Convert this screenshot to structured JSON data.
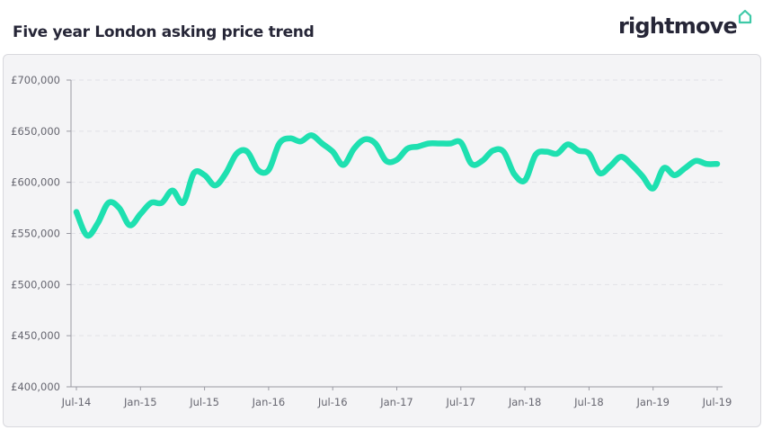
{
  "header": {
    "title": "Five year London asking price trend",
    "brand": "rightmove",
    "brand_icon": "house-outline-icon"
  },
  "colors": {
    "line": "#1ee0b0",
    "brand_accent": "#3ec9a7",
    "panel_bg": "#f4f4f6"
  },
  "chart_data": {
    "type": "line",
    "title": "Five year London asking price trend",
    "xlabel": "",
    "ylabel": "",
    "ylim": [
      400000,
      700000
    ],
    "y_ticks": [
      {
        "value": 700000,
        "label": "£700,000"
      },
      {
        "value": 650000,
        "label": "£650,000"
      },
      {
        "value": 600000,
        "label": "£600,000"
      },
      {
        "value": 550000,
        "label": "£550,000"
      },
      {
        "value": 500000,
        "label": "£500,000"
      },
      {
        "value": 450000,
        "label": "£450,000"
      },
      {
        "value": 400000,
        "label": "£400,000"
      }
    ],
    "x_ticks": [
      {
        "index": 0,
        "label": "Jul-14"
      },
      {
        "index": 6,
        "label": "Jan-15"
      },
      {
        "index": 12,
        "label": "Jul-15"
      },
      {
        "index": 18,
        "label": "Jan-16"
      },
      {
        "index": 24,
        "label": "Jul-16"
      },
      {
        "index": 30,
        "label": "Jan-17"
      },
      {
        "index": 36,
        "label": "Jul-17"
      },
      {
        "index": 42,
        "label": "Jan-18"
      },
      {
        "index": 48,
        "label": "Jul-18"
      },
      {
        "index": 54,
        "label": "Jan-19"
      },
      {
        "index": 60,
        "label": "Jul-19"
      }
    ],
    "grid": true,
    "series": [
      {
        "values": [
          571000,
          548000,
          560000,
          580000,
          575000,
          558000,
          569000,
          580000,
          580000,
          592000,
          580000,
          609000,
          607000,
          597000,
          609000,
          628000,
          630000,
          612000,
          612000,
          638000,
          643000,
          640000,
          646000,
          638000,
          630000,
          617000,
          633000,
          642000,
          638000,
          621000,
          622000,
          633000,
          635000,
          638000,
          638000,
          638000,
          639000,
          618000,
          621000,
          631000,
          630000,
          608000,
          602000,
          627000,
          630000,
          628000,
          637000,
          631000,
          628000,
          609000,
          616000,
          625000,
          617000,
          606000,
          594000,
          614000,
          607000,
          614000,
          621000,
          618000,
          618000
        ]
      }
    ]
  }
}
